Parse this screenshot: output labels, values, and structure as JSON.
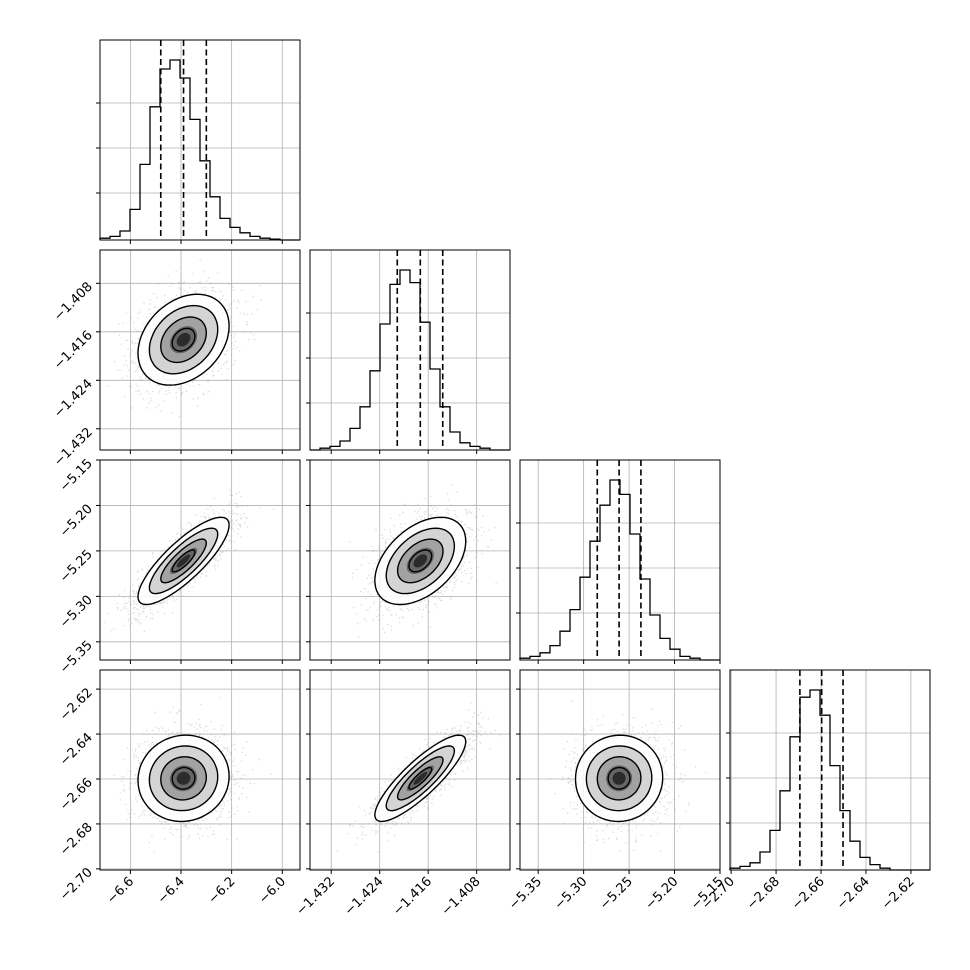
{
  "chart_data": {
    "type": "corner",
    "title": "",
    "grid": true,
    "parameters": [
      {
        "ticks": [
          -6.6,
          -6.4,
          -6.2,
          -6.0
        ],
        "tick_labels": [
          "−6.6",
          "−6.4",
          "−6.2",
          "−6.0"
        ],
        "range": [
          -6.72,
          -5.93
        ],
        "median": -6.39,
        "q16": -6.48,
        "q84": -6.3,
        "hist": [
          0.01,
          0.02,
          0.05,
          0.17,
          0.42,
          0.74,
          0.95,
          1.0,
          0.9,
          0.67,
          0.44,
          0.24,
          0.12,
          0.07,
          0.04,
          0.02,
          0.01,
          0.005,
          0,
          0
        ]
      },
      {
        "ticks": [
          -1.432,
          -1.424,
          -1.416,
          -1.408
        ],
        "tick_labels": [
          "−1.432",
          "−1.424",
          "−1.416",
          "−1.408"
        ],
        "range": [
          -1.4355,
          -1.4025
        ],
        "median": -1.4173,
        "q16": -1.4211,
        "q84": -1.4136,
        "hist": [
          0,
          0.01,
          0.02,
          0.05,
          0.12,
          0.24,
          0.44,
          0.7,
          0.92,
          1.0,
          0.93,
          0.71,
          0.45,
          0.24,
          0.1,
          0.04,
          0.02,
          0.01,
          0,
          0
        ]
      },
      {
        "ticks": [
          -5.35,
          -5.3,
          -5.25,
          -5.2,
          -5.15
        ],
        "tick_labels": [
          "−5.35",
          "−5.30",
          "−5.25",
          "−5.20",
          "−5.15"
        ],
        "range": [
          -5.37,
          -5.15
        ],
        "median": -5.261,
        "q16": -5.285,
        "q84": -5.237,
        "hist": [
          0.01,
          0.02,
          0.04,
          0.08,
          0.16,
          0.28,
          0.46,
          0.66,
          0.86,
          1.0,
          0.92,
          0.7,
          0.45,
          0.25,
          0.12,
          0.06,
          0.02,
          0.01,
          0,
          0
        ]
      },
      {
        "ticks": [
          -2.7,
          -2.68,
          -2.66,
          -2.64,
          -2.62
        ],
        "tick_labels": [
          "−2.70",
          "−2.68",
          "−2.66",
          "−2.64",
          "−2.62"
        ],
        "range": [
          -2.7005,
          -2.6115
        ],
        "median": -2.6597,
        "q16": -2.6694,
        "q84": -2.6502,
        "hist": [
          0.01,
          0.02,
          0.04,
          0.1,
          0.22,
          0.44,
          0.74,
          0.96,
          1.0,
          0.86,
          0.58,
          0.33,
          0.16,
          0.07,
          0.03,
          0.01,
          0,
          0,
          0,
          0
        ]
      }
    ],
    "correlations": [
      {
        "x": 0,
        "y": 1,
        "rho": 0.3
      },
      {
        "x": 0,
        "y": 2,
        "rho": 0.82
      },
      {
        "x": 1,
        "y": 2,
        "rho": 0.45
      },
      {
        "x": 0,
        "y": 3,
        "rho": 0.05
      },
      {
        "x": 1,
        "y": 3,
        "rho": 0.85
      },
      {
        "x": 2,
        "y": 3,
        "rho": 0.02
      }
    ],
    "contour_levels_sigma": [
      0.5,
      1.0,
      1.5,
      2.0
    ]
  }
}
